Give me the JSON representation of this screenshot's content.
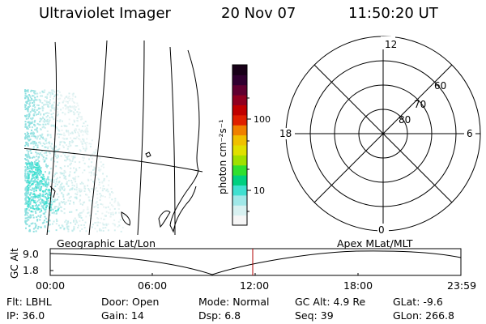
{
  "header": {
    "instrument": "Ultraviolet Imager",
    "date": "20 Nov 07",
    "time": "11:50:20 UT"
  },
  "colorbar": {
    "label": "photon cm⁻²s⁻¹",
    "ticks": [
      {
        "value": 10,
        "label": "10"
      },
      {
        "value": 100,
        "label": "100"
      }
    ],
    "colors": [
      "#f6f6f6",
      "#d8f1f1",
      "#a0e8e8",
      "#40e0d0",
      "#00d080",
      "#30e030",
      "#a0e000",
      "#e0e000",
      "#f0c000",
      "#f08000",
      "#e02000",
      "#c00000",
      "#900020",
      "#600030",
      "#300030",
      "#180018"
    ]
  },
  "polar": {
    "mlt_labels": [
      {
        "text": "12",
        "pos": "top"
      },
      {
        "text": "6",
        "pos": "right"
      },
      {
        "text": "0",
        "pos": "bottom"
      },
      {
        "text": "18",
        "pos": "left"
      }
    ],
    "lat_labels": [
      "60",
      "70",
      "80"
    ]
  },
  "timeline": {
    "ylabel": "GC Alt",
    "yticks": [
      "9.0",
      "1.8"
    ],
    "left_label": "Geographic Lat/Lon",
    "right_label": "Apex  MLat/MLT",
    "xticks": [
      "00:00",
      "06:00",
      "12:00",
      "18:00",
      "23:59"
    ],
    "current_time_fraction": 0.493
  },
  "info": {
    "filter": "Flt: LBHL",
    "ip": "IP: 36.0",
    "door": "Door: Open",
    "gain": "Gain: 14",
    "mode": "Mode: Normal",
    "dsp": "Dsp:     6.8",
    "gc_alt": "GC Alt: 4.9 Re",
    "seq": "Seq: 39",
    "glat": "GLat:   -9.6",
    "glon": "GLon: 266.8"
  }
}
